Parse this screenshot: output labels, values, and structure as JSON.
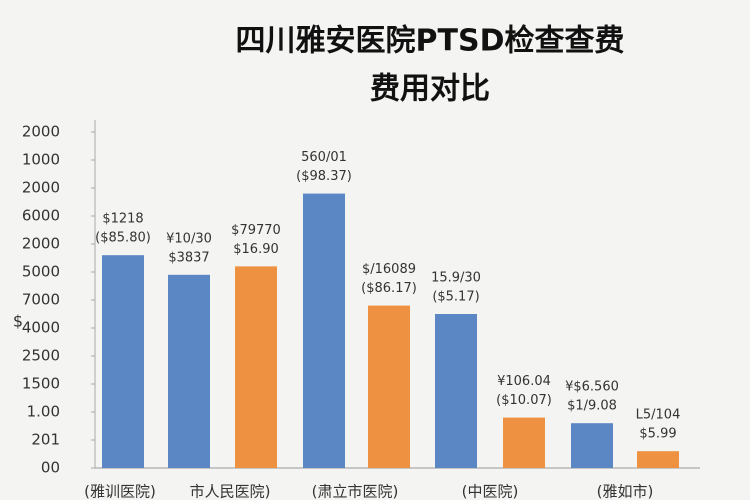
{
  "chart_data": {
    "type": "bar",
    "title": [
      "四川雅安医院PTSD检查查费",
      "费用对比"
    ],
    "y_label": "$",
    "ylim": [
      0,
      12
    ],
    "yticks": [
      {
        "value": 0,
        "label": "00"
      },
      {
        "value": 1,
        "label": "201"
      },
      {
        "value": 2,
        "label": "1.00"
      },
      {
        "value": 3,
        "label": "1500"
      },
      {
        "value": 4,
        "label": "2500"
      },
      {
        "value": 5,
        "label": "4000"
      },
      {
        "value": 6,
        "label": "7000"
      },
      {
        "value": 7,
        "label": "5000"
      },
      {
        "value": 8,
        "label": "2000"
      },
      {
        "value": 9,
        "label": "6000"
      },
      {
        "value": 10,
        "label": "2000"
      },
      {
        "value": 11,
        "label": "1000"
      },
      {
        "value": 12,
        "label": "2000"
      }
    ],
    "values": [
      7.6,
      6.9,
      7.2,
      9.8,
      5.8,
      5.5,
      1.8,
      1.6,
      0.6
    ],
    "colors": [
      "#5b87c5",
      "#5b87c5",
      "#ee9140",
      "#5b87c5",
      "#ee9140",
      "#5b87c5",
      "#ee9140",
      "#5b87c5",
      "#ee9140"
    ],
    "annotations": [
      [
        "$1218",
        "($85.80)"
      ],
      [
        "¥10/30",
        "$3837"
      ],
      [
        "$79770",
        "$16.90"
      ],
      [
        "560/01",
        "($98.37)"
      ],
      [
        "$/16089",
        "($86.17)"
      ],
      [
        "15.9/30",
        "($5.17)"
      ],
      [
        "¥106.04",
        "($10.07)"
      ],
      [
        "¥$6.560",
        "$1/9.08"
      ],
      [
        "L5/104",
        "$5.99"
      ]
    ],
    "x_labels": [
      "(雅训医院)",
      "市人民医院)",
      "(肃立市医院)",
      "(中医院)",
      "(雅如市)"
    ]
  }
}
